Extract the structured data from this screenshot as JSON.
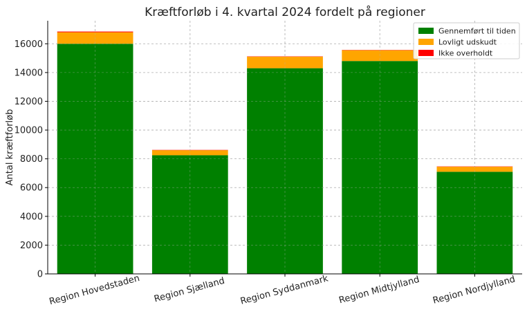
{
  "chart_data": {
    "type": "bar",
    "stacked": true,
    "title": "Kræftforløb i 4. kvartal 2024 fordelt på regioner",
    "xlabel": "",
    "ylabel": "Antal kræftforløb",
    "categories": [
      "Region Hovedstaden",
      "Region Sjælland",
      "Region Syddanmark",
      "Region Midtjylland",
      "Region Nordjylland"
    ],
    "series": [
      {
        "name": "Gennemført til tiden",
        "color": "#008000",
        "values": [
          16000,
          8250,
          14300,
          14800,
          7100
        ]
      },
      {
        "name": "Lovligt udskudt",
        "color": "#FFA500",
        "values": [
          800,
          350,
          800,
          750,
          350
        ]
      },
      {
        "name": "Ikke overholdt",
        "color": "#FF0000",
        "values": [
          50,
          20,
          20,
          20,
          20
        ]
      }
    ],
    "ylim": [
      0,
      17600
    ],
    "yticks": [
      0,
      2000,
      4000,
      6000,
      8000,
      10000,
      12000,
      14000,
      16000
    ],
    "grid": true,
    "legend_position": "top-right"
  }
}
